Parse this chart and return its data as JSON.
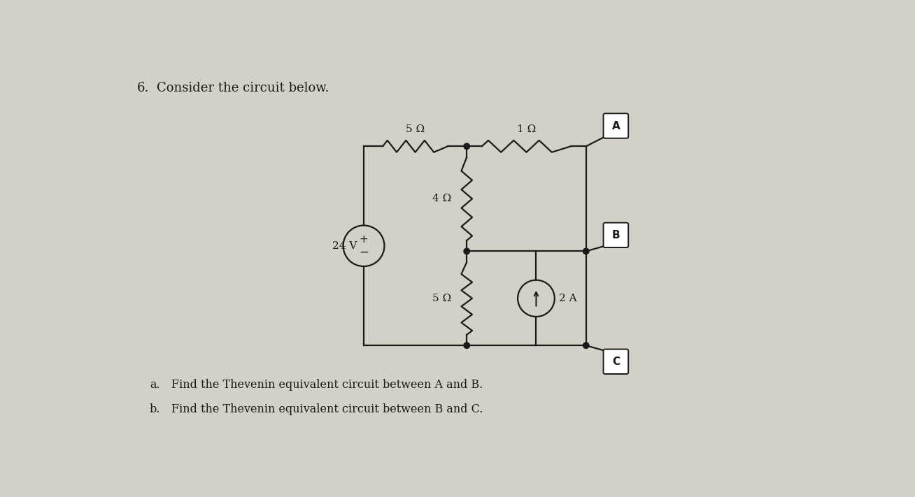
{
  "title_number": "6.",
  "title_text": "Consider the circuit below.",
  "background_color": "#d3d0c8",
  "circuit_color": "#1a1a1a",
  "question_a": "a.  Find the Thevenin equivalent circuit between A and B.",
  "question_b": "b.  Find the Thevenin equivalent circuit between B and C.",
  "resistors": {
    "R1_label": "5 Ω",
    "R2_label": "1 Ω",
    "R3_label": "4 Ω",
    "R4_label": "5 Ω"
  },
  "source_voltage": "24 V",
  "source_current": "2 A",
  "font_size_title": 13,
  "font_size_labels": 11,
  "font_size_questions": 11.5
}
